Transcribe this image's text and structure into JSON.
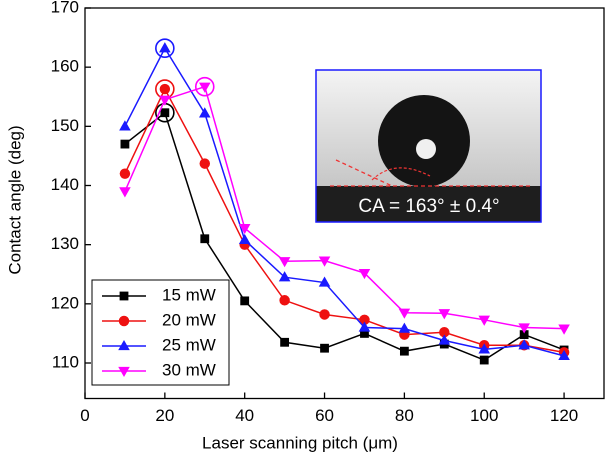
{
  "chart_data": {
    "type": "line",
    "x_label": "Laser scanning pitch (μm)",
    "y_label": "Contact angle (deg)",
    "x": [
      10,
      20,
      30,
      40,
      50,
      60,
      70,
      80,
      90,
      100,
      110,
      120
    ],
    "series": [
      {
        "name": "15 mW",
        "color": "#000000",
        "marker": "square",
        "highlight": 1,
        "values": [
          147,
          152.3,
          131,
          120.5,
          113.5,
          112.5,
          115,
          112,
          113.2,
          110.5,
          114.8,
          112.2
        ]
      },
      {
        "name": "20 mW",
        "color": "#ee1111",
        "marker": "circle",
        "highlight": 1,
        "values": [
          142,
          156.3,
          143.7,
          130,
          120.6,
          118.2,
          117.3,
          114.8,
          115.2,
          113,
          113,
          111.8
        ]
      },
      {
        "name": "25 mW",
        "color": "#1a1aff",
        "marker": "triangle",
        "highlight": 1,
        "values": [
          150,
          163.2,
          152.2,
          130.8,
          124.5,
          123.6,
          116,
          115.8,
          113.8,
          112.3,
          113,
          111.2
        ]
      },
      {
        "name": "30 mW",
        "color": "#ff00ff",
        "marker": "triangle-down",
        "highlight": 2,
        "values": [
          139,
          154.5,
          156.7,
          132.8,
          127.2,
          127.3,
          125.2,
          118.5,
          118.4,
          117.3,
          116,
          115.8
        ]
      }
    ],
    "xlim": [
      0,
      130
    ],
    "xticks": [
      0,
      20,
      40,
      60,
      80,
      100,
      120
    ],
    "ylim": [
      104,
      170
    ],
    "yticks": [
      110,
      120,
      130,
      140,
      150,
      160,
      170
    ],
    "legend": "lower left",
    "inset_label": "CA = 163° ± 0.4°"
  }
}
